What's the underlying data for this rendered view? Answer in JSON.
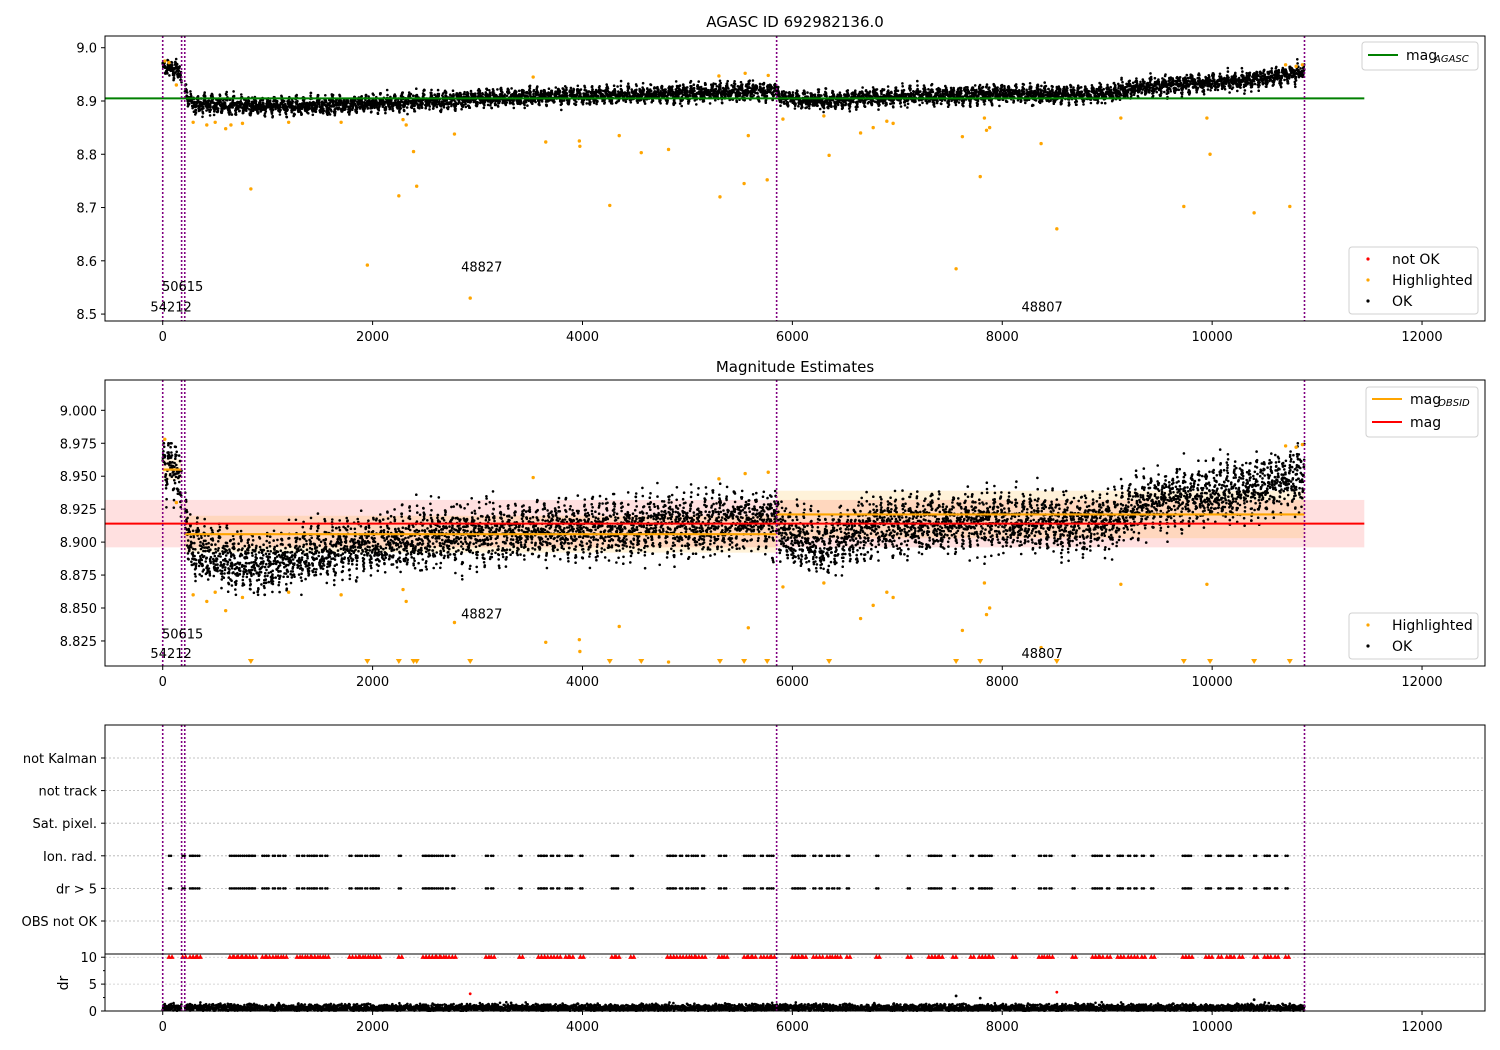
{
  "chart_data": [
    {
      "type": "scatter",
      "title": "AGASC ID 692982136.0",
      "xlabel": "",
      "ylabel": "",
      "xlim": [
        -550,
        12600
      ],
      "ylim": [
        8.487,
        9.022
      ],
      "x_ticks": [
        0,
        2000,
        4000,
        6000,
        8000,
        10000,
        12000
      ],
      "x_tick_labels": [
        "0",
        "2000",
        "4000",
        "6000",
        "8000",
        "10000",
        "12000"
      ],
      "y_ticks": [
        8.5,
        8.6,
        8.7,
        8.8,
        8.9,
        9.0
      ],
      "y_tick_labels": [
        "8.5",
        "8.6",
        "8.7",
        "8.8",
        "8.9",
        "9.0"
      ],
      "vlines": [
        0,
        180,
        210,
        5850,
        10880
      ],
      "hline": {
        "y": 8.905,
        "x_range": [
          -550,
          11450
        ],
        "color": "#008000"
      },
      "annotations": [
        {
          "text": "54212",
          "x": 80,
          "y": 8.505
        },
        {
          "text": "50615",
          "x": 190,
          "y": 8.543
        },
        {
          "text": "48827",
          "x": 3040,
          "y": 8.58
        },
        {
          "text": "48807",
          "x": 8380,
          "y": 8.505
        }
      ],
      "legend_lower": {
        "placement": "lower-right",
        "entries": [
          {
            "label": "not OK",
            "color": "#ff0000"
          },
          {
            "label": "Highlighted",
            "color": "#ffa500"
          },
          {
            "label": "OK",
            "color": "#000000"
          }
        ]
      },
      "legend_upper": {
        "placement": "upper-right",
        "main": "mag",
        "sub": "AGASC",
        "color": "#008000"
      },
      "trend": [
        {
          "x": 0,
          "y": 8.965
        },
        {
          "x": 170,
          "y": 8.955
        },
        {
          "x": 260,
          "y": 8.895
        },
        {
          "x": 600,
          "y": 8.893
        },
        {
          "x": 1000,
          "y": 8.889
        },
        {
          "x": 1500,
          "y": 8.892
        },
        {
          "x": 2000,
          "y": 8.895
        },
        {
          "x": 2500,
          "y": 8.9
        },
        {
          "x": 3000,
          "y": 8.904
        },
        {
          "x": 3500,
          "y": 8.908
        },
        {
          "x": 4000,
          "y": 8.91
        },
        {
          "x": 4500,
          "y": 8.912
        },
        {
          "x": 5000,
          "y": 8.914
        },
        {
          "x": 5500,
          "y": 8.918
        },
        {
          "x": 5850,
          "y": 8.92
        },
        {
          "x": 5900,
          "y": 8.905
        },
        {
          "x": 6300,
          "y": 8.9
        },
        {
          "x": 6800,
          "y": 8.908
        },
        {
          "x": 7500,
          "y": 8.91
        },
        {
          "x": 8000,
          "y": 8.914
        },
        {
          "x": 8500,
          "y": 8.912
        },
        {
          "x": 9000,
          "y": 8.914
        },
        {
          "x": 9300,
          "y": 8.925
        },
        {
          "x": 9800,
          "y": 8.933
        },
        {
          "x": 10300,
          "y": 8.938
        },
        {
          "x": 10880,
          "y": 8.955
        }
      ],
      "highlighted": [
        {
          "x": 20,
          "y": 8.975
        },
        {
          "x": 60,
          "y": 8.972
        },
        {
          "x": 130,
          "y": 8.93
        },
        {
          "x": 290,
          "y": 8.86
        },
        {
          "x": 420,
          "y": 8.855
        },
        {
          "x": 500,
          "y": 8.86
        },
        {
          "x": 600,
          "y": 8.848
        },
        {
          "x": 650,
          "y": 8.855
        },
        {
          "x": 760,
          "y": 8.858
        },
        {
          "x": 840,
          "y": 8.735
        },
        {
          "x": 1200,
          "y": 8.86
        },
        {
          "x": 1700,
          "y": 8.86
        },
        {
          "x": 1950,
          "y": 8.592
        },
        {
          "x": 2250,
          "y": 8.722
        },
        {
          "x": 2290,
          "y": 8.865
        },
        {
          "x": 2320,
          "y": 8.855
        },
        {
          "x": 2390,
          "y": 8.805
        },
        {
          "x": 2420,
          "y": 8.74
        },
        {
          "x": 2780,
          "y": 8.838
        },
        {
          "x": 2930,
          "y": 8.53
        },
        {
          "x": 3530,
          "y": 8.945
        },
        {
          "x": 3650,
          "y": 8.823
        },
        {
          "x": 3970,
          "y": 8.825
        },
        {
          "x": 3975,
          "y": 8.815
        },
        {
          "x": 4260,
          "y": 8.704
        },
        {
          "x": 4350,
          "y": 8.835
        },
        {
          "x": 4560,
          "y": 8.803
        },
        {
          "x": 4820,
          "y": 8.809
        },
        {
          "x": 5300,
          "y": 8.947
        },
        {
          "x": 5310,
          "y": 8.72
        },
        {
          "x": 5540,
          "y": 8.745
        },
        {
          "x": 5550,
          "y": 8.952
        },
        {
          "x": 5580,
          "y": 8.835
        },
        {
          "x": 5760,
          "y": 8.752
        },
        {
          "x": 5770,
          "y": 8.948
        },
        {
          "x": 5910,
          "y": 8.866
        },
        {
          "x": 6300,
          "y": 8.872
        },
        {
          "x": 6350,
          "y": 8.798
        },
        {
          "x": 6650,
          "y": 8.84
        },
        {
          "x": 6770,
          "y": 8.85
        },
        {
          "x": 6900,
          "y": 8.862
        },
        {
          "x": 6960,
          "y": 8.858
        },
        {
          "x": 7560,
          "y": 8.585
        },
        {
          "x": 7620,
          "y": 8.833
        },
        {
          "x": 7790,
          "y": 8.758
        },
        {
          "x": 7830,
          "y": 8.868
        },
        {
          "x": 7850,
          "y": 8.845
        },
        {
          "x": 7880,
          "y": 8.85
        },
        {
          "x": 8370,
          "y": 8.82
        },
        {
          "x": 8520,
          "y": 8.66
        },
        {
          "x": 9130,
          "y": 8.868
        },
        {
          "x": 9730,
          "y": 8.702
        },
        {
          "x": 9950,
          "y": 8.868
        },
        {
          "x": 9980,
          "y": 8.8
        },
        {
          "x": 10400,
          "y": 8.69
        },
        {
          "x": 10700,
          "y": 8.968
        },
        {
          "x": 10740,
          "y": 8.702
        },
        {
          "x": 10800,
          "y": 8.965
        },
        {
          "x": 10860,
          "y": 8.968
        }
      ]
    },
    {
      "type": "scatter",
      "title": "Magnitude Estimates",
      "xlabel": "",
      "ylabel": "",
      "xlim": [
        -550,
        12600
      ],
      "ylim": [
        8.806,
        9.023
      ],
      "x_ticks": [
        0,
        2000,
        4000,
        6000,
        8000,
        10000,
        12000
      ],
      "x_tick_labels": [
        "0",
        "2000",
        "4000",
        "6000",
        "8000",
        "10000",
        "12000"
      ],
      "y_ticks": [
        8.825,
        8.85,
        8.875,
        8.9,
        8.925,
        8.95,
        8.975,
        9.0
      ],
      "y_tick_labels": [
        "8.825",
        "8.850",
        "8.875",
        "8.900",
        "8.925",
        "8.950",
        "8.975",
        "9.000"
      ],
      "vlines": [
        0,
        180,
        210,
        5850,
        10880
      ],
      "mag_line": {
        "y": 8.914,
        "band": [
          8.896,
          8.932
        ],
        "x_range": [
          -550,
          11450
        ],
        "color": "#ff0000"
      },
      "obsid_segments": [
        {
          "x0": 0,
          "x1": 180,
          "y": 8.955,
          "band": [
            8.947,
            8.963
          ]
        },
        {
          "x0": 210,
          "x1": 5850,
          "y": 8.906,
          "band": [
            8.892,
            8.92
          ]
        },
        {
          "x0": 5850,
          "x1": 10880,
          "y": 8.921,
          "band": [
            8.903,
            8.939
          ]
        }
      ],
      "annotations": [
        {
          "text": "54212",
          "x": 80,
          "y": 8.812
        },
        {
          "text": "50615",
          "x": 190,
          "y": 8.827
        },
        {
          "text": "48827",
          "x": 3040,
          "y": 8.842
        },
        {
          "text": "48807",
          "x": 8380,
          "y": 8.812
        }
      ],
      "legend_lower": {
        "placement": "lower-right",
        "entries": [
          {
            "label": "Highlighted",
            "color": "#ffa500"
          },
          {
            "label": "OK",
            "color": "#000000"
          }
        ]
      },
      "legend_upper": {
        "placement": "upper-right",
        "entries": [
          {
            "main": "mag",
            "sub": "OBSID",
            "color": "#ffa500"
          },
          {
            "main": "mag",
            "sub": "",
            "color": "#ff0000"
          }
        ]
      },
      "trend": [
        {
          "x": 0,
          "y": 8.962
        },
        {
          "x": 170,
          "y": 8.952
        },
        {
          "x": 260,
          "y": 8.898
        },
        {
          "x": 600,
          "y": 8.885
        },
        {
          "x": 1000,
          "y": 8.883
        },
        {
          "x": 1500,
          "y": 8.893
        },
        {
          "x": 2000,
          "y": 8.898
        },
        {
          "x": 2500,
          "y": 8.903
        },
        {
          "x": 3000,
          "y": 8.906
        },
        {
          "x": 3500,
          "y": 8.909
        },
        {
          "x": 4000,
          "y": 8.91
        },
        {
          "x": 4500,
          "y": 8.912
        },
        {
          "x": 5000,
          "y": 8.913
        },
        {
          "x": 5500,
          "y": 8.916
        },
        {
          "x": 5850,
          "y": 8.918
        },
        {
          "x": 5900,
          "y": 8.906
        },
        {
          "x": 6300,
          "y": 8.898
        },
        {
          "x": 6800,
          "y": 8.912
        },
        {
          "x": 7500,
          "y": 8.915
        },
        {
          "x": 8000,
          "y": 8.917
        },
        {
          "x": 8500,
          "y": 8.915
        },
        {
          "x": 9000,
          "y": 8.914
        },
        {
          "x": 9300,
          "y": 8.928
        },
        {
          "x": 9800,
          "y": 8.935
        },
        {
          "x": 10300,
          "y": 8.94
        },
        {
          "x": 10880,
          "y": 8.95
        }
      ],
      "highlighted": [
        {
          "x": 20,
          "y": 8.978
        },
        {
          "x": 130,
          "y": 8.93
        },
        {
          "x": 290,
          "y": 8.86
        },
        {
          "x": 420,
          "y": 8.855
        },
        {
          "x": 500,
          "y": 8.862
        },
        {
          "x": 600,
          "y": 8.848
        },
        {
          "x": 760,
          "y": 8.858
        },
        {
          "x": 1200,
          "y": 8.862
        },
        {
          "x": 1700,
          "y": 8.86
        },
        {
          "x": 2290,
          "y": 8.864
        },
        {
          "x": 2320,
          "y": 8.855
        },
        {
          "x": 2780,
          "y": 8.839
        },
        {
          "x": 3530,
          "y": 8.949
        },
        {
          "x": 3650,
          "y": 8.824
        },
        {
          "x": 3970,
          "y": 8.826
        },
        {
          "x": 3975,
          "y": 8.817
        },
        {
          "x": 4350,
          "y": 8.836
        },
        {
          "x": 4820,
          "y": 8.809
        },
        {
          "x": 5300,
          "y": 8.948
        },
        {
          "x": 5550,
          "y": 8.952
        },
        {
          "x": 5580,
          "y": 8.835
        },
        {
          "x": 5770,
          "y": 8.953
        },
        {
          "x": 5910,
          "y": 8.866
        },
        {
          "x": 6300,
          "y": 8.869
        },
        {
          "x": 6650,
          "y": 8.842
        },
        {
          "x": 6770,
          "y": 8.852
        },
        {
          "x": 6900,
          "y": 8.862
        },
        {
          "x": 6960,
          "y": 8.858
        },
        {
          "x": 7620,
          "y": 8.833
        },
        {
          "x": 7830,
          "y": 8.869
        },
        {
          "x": 7850,
          "y": 8.845
        },
        {
          "x": 7880,
          "y": 8.85
        },
        {
          "x": 8370,
          "y": 8.82
        },
        {
          "x": 9130,
          "y": 8.868
        },
        {
          "x": 9950,
          "y": 8.868
        },
        {
          "x": 10700,
          "y": 8.973
        },
        {
          "x": 10800,
          "y": 8.972
        },
        {
          "x": 10860,
          "y": 8.974
        }
      ],
      "offscale_markers_x": [
        840,
        1950,
        2250,
        2390,
        2420,
        2930,
        4260,
        4560,
        5310,
        5540,
        5760,
        6350,
        7560,
        7790,
        8520,
        9730,
        9980,
        10400,
        10740
      ]
    },
    {
      "type": "scatter",
      "title": "",
      "xlabel": "",
      "ylabel": "",
      "xlim": [
        -550,
        12600
      ],
      "categories": [
        "not Kalman",
        "not track",
        "Sat. pixel.",
        "Ion. rad.",
        "dr > 5",
        "OBS not OK"
      ],
      "flag_points_x": [
        60,
        190,
        260,
        290,
        330,
        640,
        680,
        720,
        760,
        800,
        830,
        860,
        950,
        990,
        1050,
        1100,
        1150,
        1280,
        1330,
        1380,
        1420,
        1450,
        1500,
        1550,
        1780,
        1840,
        1880,
        1930,
        1980,
        2010,
        2040,
        2250,
        2480,
        2510,
        2540,
        2570,
        2610,
        2650,
        2700,
        2760,
        3080,
        3130,
        3400,
        3580,
        3610,
        3640,
        3700,
        3760,
        3840,
        3880,
        3980,
        4280,
        4320,
        4460,
        4810,
        4840,
        4870,
        4930,
        4990,
        5040,
        5080,
        5140,
        5300,
        5350,
        5540,
        5580,
        5620,
        5700,
        5760,
        5800,
        6000,
        6030,
        6060,
        6100,
        6200,
        6260,
        6330,
        6380,
        6430,
        6520,
        6800,
        7100,
        7300,
        7330,
        7360,
        7400,
        7530,
        7700,
        7780,
        7810,
        7840,
        7880,
        8100,
        8350,
        8400,
        8450,
        8670,
        8860,
        8890,
        8930,
        9000,
        9100,
        9130,
        9200,
        9260,
        9330,
        9420,
        9720,
        9750,
        9780,
        9940,
        9970,
        10060,
        10140,
        10180,
        10260,
        10400,
        10500,
        10530,
        10600,
        10700
      ],
      "flag_rows": [
        "Ion. rad.",
        "dr > 5"
      ],
      "dr_axis": {
        "ylabel": "dr",
        "ylim": [
          0,
          10.6
        ],
        "y_ticks": [
          0,
          5,
          10
        ],
        "y_tick_labels": [
          "0",
          "5",
          "10"
        ],
        "dr_cap": 10
      },
      "dr_typical": 0.6,
      "dr_outliers": [
        {
          "x": 2930,
          "y": 3.2
        },
        {
          "x": 3320,
          "y": 1.5
        },
        {
          "x": 7560,
          "y": 2.8
        },
        {
          "x": 7790,
          "y": 2.4
        },
        {
          "x": 8520,
          "y": 3.5
        },
        {
          "x": 10400,
          "y": 2.1
        }
      ],
      "vlines": [
        0,
        180,
        210,
        5850,
        10880
      ],
      "x_ticks": [
        0,
        2000,
        4000,
        6000,
        8000,
        10000,
        12000
      ],
      "x_tick_labels": [
        "0",
        "2000",
        "4000",
        "6000",
        "8000",
        "10000",
        "12000"
      ]
    }
  ]
}
